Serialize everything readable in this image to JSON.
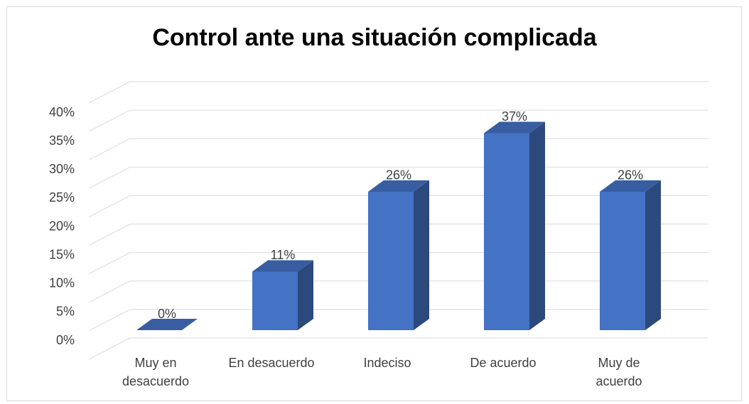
{
  "chart_data": {
    "type": "bar3d",
    "title": "Control ante una situación complicada",
    "categories": [
      "Muy en desacuerdo",
      "En desacuerdo",
      "Indeciso",
      "De acuerdo",
      "Muy de acuerdo"
    ],
    "values": [
      0,
      11,
      26,
      37,
      26
    ],
    "value_labels": [
      "0%",
      "11%",
      "26%",
      "37%",
      "26%"
    ],
    "color": "#4472c4",
    "ylim": [
      0,
      45
    ],
    "yticks": [
      {
        "value": 0,
        "label": "0%"
      },
      {
        "value": 5,
        "label": "5%"
      },
      {
        "value": 10,
        "label": "10%"
      },
      {
        "value": 15,
        "label": "15%"
      },
      {
        "value": 20,
        "label": "20%"
      },
      {
        "value": 25,
        "label": "25%"
      },
      {
        "value": 30,
        "label": "30%"
      },
      {
        "value": 35,
        "label": "35%"
      },
      {
        "value": 40,
        "label": "40%"
      }
    ],
    "grid": true
  }
}
